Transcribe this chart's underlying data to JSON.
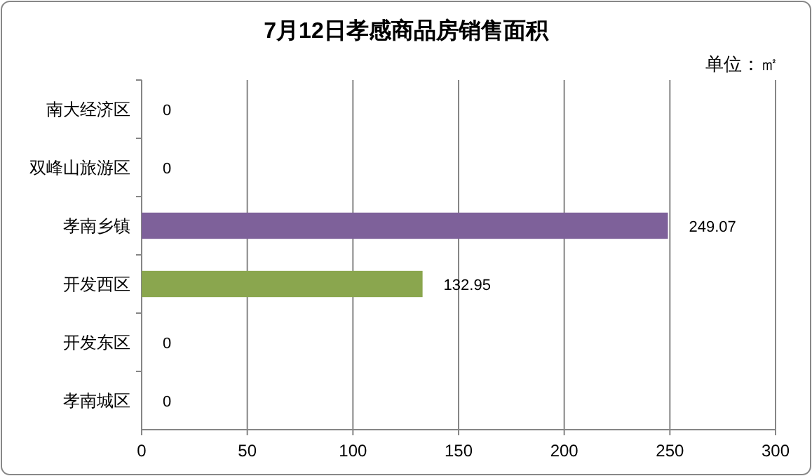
{
  "chart_data": {
    "type": "bar",
    "orientation": "horizontal",
    "title": "7月12日孝感商品房销售面积",
    "annotations": [
      "单位：㎡"
    ],
    "categories": [
      "南大经济区",
      "双峰山旅游区",
      "孝南乡镇",
      "开发西区",
      "开发东区",
      "孝南城区"
    ],
    "values": [
      0,
      0,
      249.07,
      132.95,
      0,
      0
    ],
    "colors": [
      "#4f81bd",
      "#c0504d",
      "#7e619a",
      "#8aa64e",
      "#4bacc6",
      "#f79646"
    ],
    "xlim": [
      0,
      300
    ],
    "xticks": [
      0,
      50,
      100,
      150,
      200,
      250,
      300
    ],
    "grid": "x",
    "data_labels": true
  }
}
